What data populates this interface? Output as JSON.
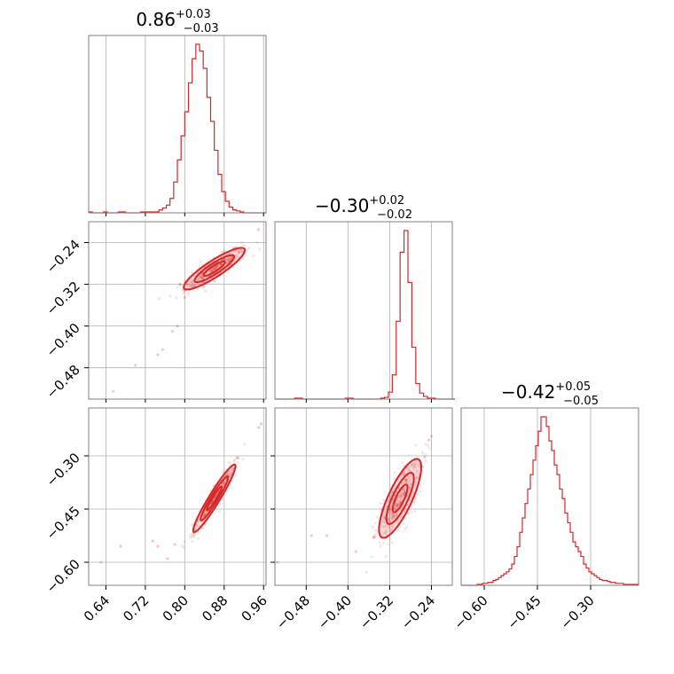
{
  "chart_data": {
    "type": "corner",
    "color": "#d62728",
    "grid": true,
    "parameters": [
      {
        "median": "0.86",
        "err_plus": "+0.03",
        "err_minus": "−0.03",
        "range": [
          0.605,
          0.965
        ],
        "ticks": [
          0.64,
          0.72,
          0.8,
          0.88,
          0.96
        ],
        "tick_labels": [
          "0.64",
          "0.72",
          "0.80",
          "0.88",
          "0.96"
        ]
      },
      {
        "median": "−0.30",
        "err_plus": "+0.02",
        "err_minus": "−0.02",
        "range": [
          -0.54,
          -0.2
        ],
        "ticks": [
          -0.48,
          -0.4,
          -0.32,
          -0.24
        ],
        "tick_labels": [
          "−0.48",
          "−0.40",
          "−0.32",
          "−0.24"
        ]
      },
      {
        "median": "−0.42",
        "err_plus": "+0.05",
        "err_minus": "−0.05",
        "range": [
          -0.665,
          -0.165
        ],
        "ticks": [
          -0.6,
          -0.45,
          -0.3
        ],
        "tick_labels": [
          "−0.60",
          "−0.45",
          "−0.30"
        ]
      }
    ],
    "histograms": [
      {
        "param": 0,
        "edges": [
          0.605,
          0.6125,
          0.62,
          0.6275,
          0.635,
          0.6425,
          0.65,
          0.6575,
          0.665,
          0.6725,
          0.68,
          0.6875,
          0.695,
          0.7025,
          0.71,
          0.7175,
          0.725,
          0.7325,
          0.74,
          0.7475,
          0.755,
          0.7625,
          0.77,
          0.7775,
          0.785,
          0.7925,
          0.8,
          0.8075,
          0.815,
          0.8225,
          0.83,
          0.8375,
          0.845,
          0.8525,
          0.86,
          0.8675,
          0.875,
          0.8825,
          0.89,
          0.8975,
          0.905,
          0.9125,
          0.92,
          0.9275,
          0.935,
          0.9425,
          0.95,
          0.9575,
          0.965
        ],
        "counts": [
          1,
          0,
          0,
          0,
          1,
          0,
          0,
          0,
          1,
          1,
          0,
          0,
          0,
          0,
          1,
          1,
          1,
          1,
          1,
          3,
          5,
          8,
          15,
          32,
          55,
          80,
          105,
          135,
          160,
          175,
          168,
          150,
          120,
          95,
          65,
          40,
          22,
          12,
          6,
          3,
          2,
          1,
          0,
          0,
          0,
          0,
          0,
          0
        ]
      },
      {
        "param": 1,
        "edges": [
          -0.54,
          -0.5325,
          -0.525,
          -0.5175,
          -0.51,
          -0.5025,
          -0.495,
          -0.4875,
          -0.48,
          -0.4725,
          -0.465,
          -0.4575,
          -0.45,
          -0.4425,
          -0.435,
          -0.4275,
          -0.42,
          -0.4125,
          -0.405,
          -0.3975,
          -0.39,
          -0.3825,
          -0.375,
          -0.3675,
          -0.36,
          -0.3525,
          -0.345,
          -0.3375,
          -0.33,
          -0.3225,
          -0.315,
          -0.3075,
          -0.3,
          -0.2925,
          -0.285,
          -0.2775,
          -0.27,
          -0.2625,
          -0.255,
          -0.2475,
          -0.24,
          -0.2325,
          -0.225,
          -0.2175,
          -0.21,
          -0.2025,
          -0.195
        ],
        "counts": [
          0,
          0,
          0,
          0,
          0,
          1,
          1,
          0,
          0,
          0,
          0,
          0,
          0,
          0,
          0,
          0,
          0,
          0,
          1,
          1,
          0,
          0,
          0,
          0,
          0,
          0,
          0,
          1,
          2,
          8,
          28,
          90,
          170,
          195,
          135,
          60,
          18,
          7,
          3,
          1,
          1,
          0,
          0,
          0,
          0,
          0
        ]
      },
      {
        "param": 2,
        "edges": [
          -0.665,
          -0.6575,
          -0.65,
          -0.6425,
          -0.635,
          -0.6275,
          -0.62,
          -0.6125,
          -0.605,
          -0.5975,
          -0.59,
          -0.5825,
          -0.575,
          -0.5675,
          -0.56,
          -0.5525,
          -0.545,
          -0.5375,
          -0.53,
          -0.5225,
          -0.515,
          -0.5075,
          -0.5,
          -0.4925,
          -0.485,
          -0.4775,
          -0.47,
          -0.4625,
          -0.455,
          -0.4475,
          -0.44,
          -0.4325,
          -0.425,
          -0.4175,
          -0.41,
          -0.4025,
          -0.395,
          -0.3875,
          -0.38,
          -0.3725,
          -0.365,
          -0.3575,
          -0.35,
          -0.3425,
          -0.335,
          -0.3275,
          -0.32,
          -0.3125,
          -0.305,
          -0.2975,
          -0.29,
          -0.2825,
          -0.275,
          -0.2675,
          -0.26,
          -0.2525,
          -0.245,
          -0.2375,
          -0.23,
          -0.2225,
          -0.215,
          -0.2075,
          -0.2,
          -0.1925,
          -0.185,
          -0.1775,
          -0.17,
          -0.165
        ],
        "counts": [
          0,
          0,
          0,
          0,
          0,
          0,
          1,
          1,
          2,
          2,
          3,
          3,
          5,
          6,
          8,
          10,
          12,
          14,
          17,
          22,
          30,
          40,
          55,
          70,
          85,
          100,
          115,
          130,
          145,
          160,
          175,
          175,
          165,
          150,
          140,
          125,
          115,
          100,
          90,
          75,
          65,
          55,
          45,
          40,
          35,
          30,
          22,
          18,
          14,
          12,
          10,
          8,
          6,
          5,
          5,
          4,
          3,
          3,
          2,
          2,
          2,
          1,
          1,
          1,
          1,
          1,
          1
        ]
      }
    ],
    "scatter_panels": [
      {
        "x_param": 0,
        "y_param": 1,
        "axis_ticks_y": [
          -0.24,
          -0.32,
          -0.4,
          -0.48
        ],
        "axis_tick_labels_y": [
          "−0.24",
          "−0.32",
          "−0.40",
          "−0.48"
        ],
        "outliers": [
          [
            0.655,
            -0.525
          ],
          [
            0.7,
            -0.475
          ],
          [
            0.745,
            -0.455
          ],
          [
            0.755,
            -0.445
          ],
          [
            0.775,
            -0.41
          ],
          [
            0.785,
            -0.4
          ],
          [
            0.79,
            -0.32
          ],
          [
            0.8,
            -0.345
          ],
          [
            0.81,
            -0.33
          ],
          [
            0.95,
            -0.215
          ]
        ],
        "center": [
          0.86,
          -0.29
        ],
        "sigma_major": 0.036,
        "sigma_minor": 0.008,
        "direction": [
          1.0,
          0.61
        ]
      },
      {
        "x_param": 0,
        "y_param": 2,
        "axis_ticks_y": [
          -0.3,
          -0.45,
          -0.6
        ],
        "axis_tick_labels_y": [
          "−0.30",
          "−0.45",
          "−0.60"
        ],
        "outliers": [
          [
            0.63,
            -0.6
          ],
          [
            0.67,
            -0.555
          ],
          [
            0.735,
            -0.54
          ],
          [
            0.745,
            -0.555
          ],
          [
            0.765,
            -0.59
          ],
          [
            0.78,
            -0.55
          ],
          [
            0.95,
            -0.22
          ],
          [
            0.955,
            -0.21
          ]
        ],
        "center": [
          0.86,
          -0.42
        ],
        "sigma_major": 0.052,
        "sigma_minor": 0.006,
        "direction": [
          1.0,
          2.3
        ]
      },
      {
        "x_param": 1,
        "y_param": 2,
        "outliers": [
          [
            -0.535,
            -0.6
          ],
          [
            -0.47,
            -0.525
          ],
          [
            -0.44,
            -0.525
          ],
          [
            -0.385,
            -0.57
          ],
          [
            -0.35,
            -0.53
          ],
          [
            -0.24,
            -0.245
          ],
          [
            -0.245,
            -0.255
          ]
        ],
        "center": [
          -0.3,
          -0.42
        ],
        "sigma_major": 0.058,
        "sigma_minor": 0.012,
        "direction": [
          0.3,
          1.0
        ]
      }
    ]
  }
}
